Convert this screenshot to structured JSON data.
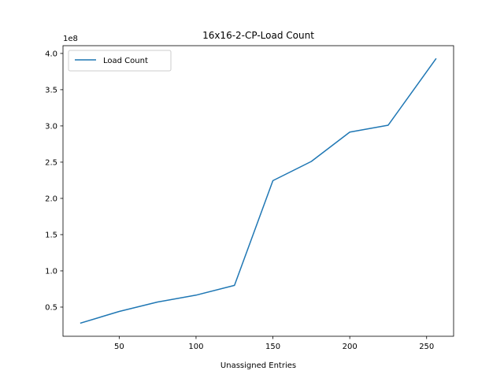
{
  "chart_data": {
    "type": "line",
    "title": "16x16-2-CP-Load Count",
    "xlabel": "Unassigned Entries",
    "ylabel": "",
    "y_offset_label": "1e8",
    "x": [
      25,
      50,
      75,
      100,
      125,
      150,
      175,
      200,
      225,
      256
    ],
    "series": [
      {
        "name": "Load Count",
        "color": "#1f77b4",
        "values": [
          28000000,
          44000000,
          57000000,
          66500000,
          80000000,
          224500000,
          251000000,
          291500000,
          301000000,
          392500000
        ]
      }
    ],
    "xlim": [
      13.45,
      267.55
    ],
    "ylim": [
      9770000,
      410730000
    ],
    "xticks": [
      50,
      100,
      150,
      200,
      250
    ],
    "xtick_labels": [
      "50",
      "100",
      "150",
      "200",
      "250"
    ],
    "yticks": [
      50000000,
      100000000,
      150000000,
      200000000,
      250000000,
      300000000,
      350000000,
      400000000
    ],
    "ytick_labels": [
      "0.5",
      "1.0",
      "1.5",
      "2.0",
      "2.5",
      "3.0",
      "3.5",
      "4.0"
    ],
    "grid": false,
    "legend_position": "upper-left"
  }
}
